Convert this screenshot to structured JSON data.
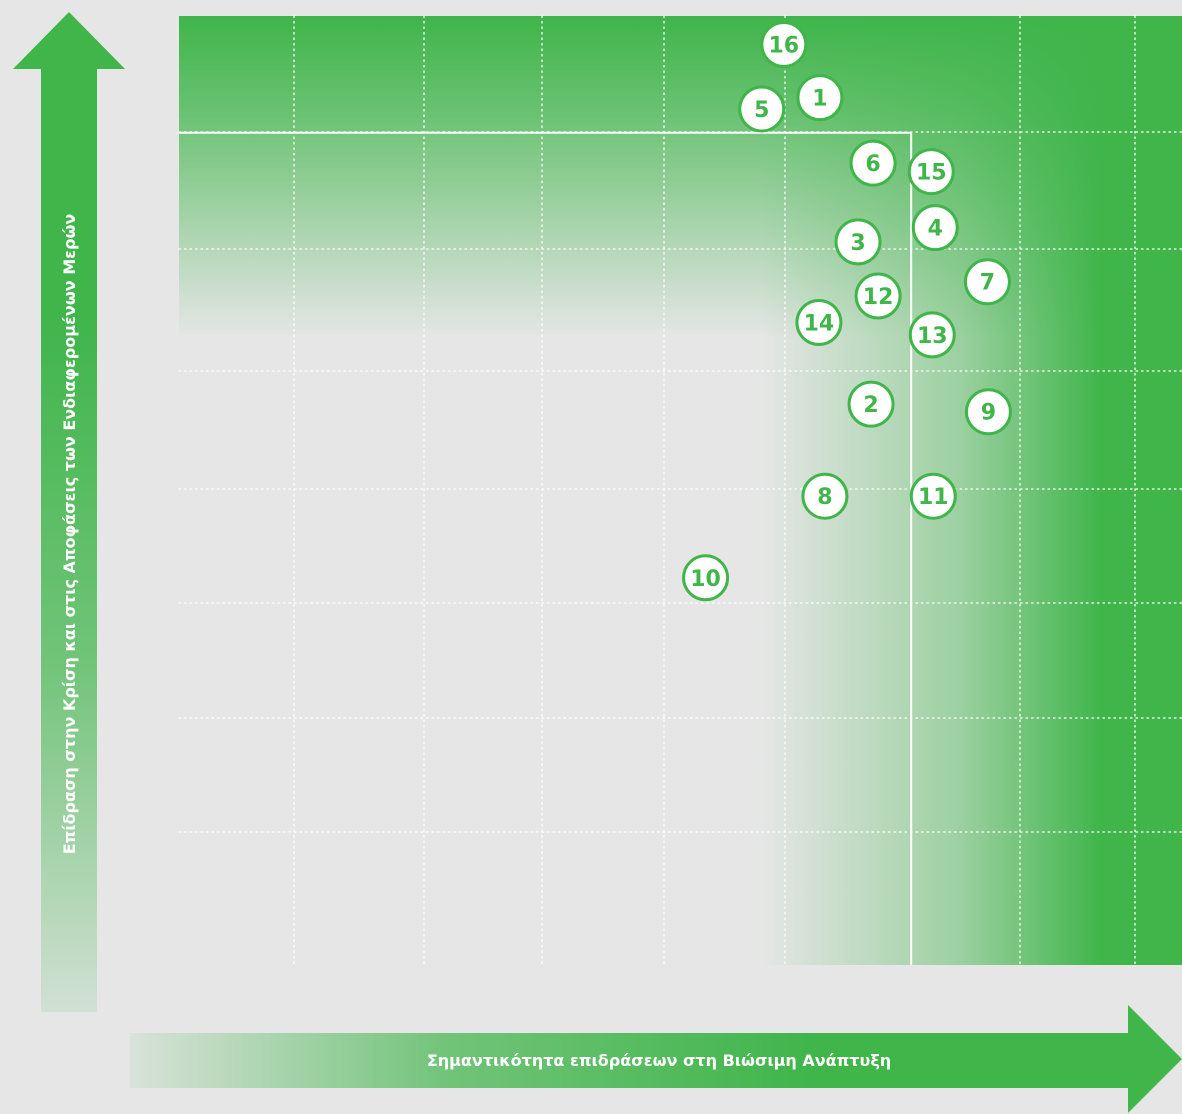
{
  "chart_data": {
    "type": "scatter",
    "xlabel": "Σημαντικότητα επιδράσεων στη Βιώσιμη Ανάπτυξη",
    "ylabel": "Επίδραση στην Κρίση και στις Αποφάσεις των Ενδιαφερομένων Μερών",
    "xlim": [
      0,
      1
    ],
    "ylim": [
      0,
      1
    ],
    "grid": true,
    "threshold": {
      "x": 0.73,
      "y": 0.877
    },
    "colors": {
      "accent": "#3fb54a",
      "background": "#e6e6e6",
      "grid": "#ffffff"
    },
    "points": [
      {
        "label": "1",
        "x": 0.639,
        "y": 0.914
      },
      {
        "label": "2",
        "x": 0.69,
        "y": 0.591
      },
      {
        "label": "3",
        "x": 0.677,
        "y": 0.762
      },
      {
        "label": "4",
        "x": 0.754,
        "y": 0.777
      },
      {
        "label": "5",
        "x": 0.581,
        "y": 0.902
      },
      {
        "label": "6",
        "x": 0.692,
        "y": 0.845
      },
      {
        "label": "7",
        "x": 0.806,
        "y": 0.72
      },
      {
        "label": "8",
        "x": 0.644,
        "y": 0.494
      },
      {
        "label": "9",
        "x": 0.807,
        "y": 0.583
      },
      {
        "label": "10",
        "x": 0.525,
        "y": 0.408
      },
      {
        "label": "11",
        "x": 0.752,
        "y": 0.494
      },
      {
        "label": "12",
        "x": 0.697,
        "y": 0.705
      },
      {
        "label": "13",
        "x": 0.751,
        "y": 0.664
      },
      {
        "label": "14",
        "x": 0.638,
        "y": 0.677
      },
      {
        "label": "15",
        "x": 0.75,
        "y": 0.836
      },
      {
        "label": "16",
        "x": 0.603,
        "y": 0.97
      }
    ]
  }
}
